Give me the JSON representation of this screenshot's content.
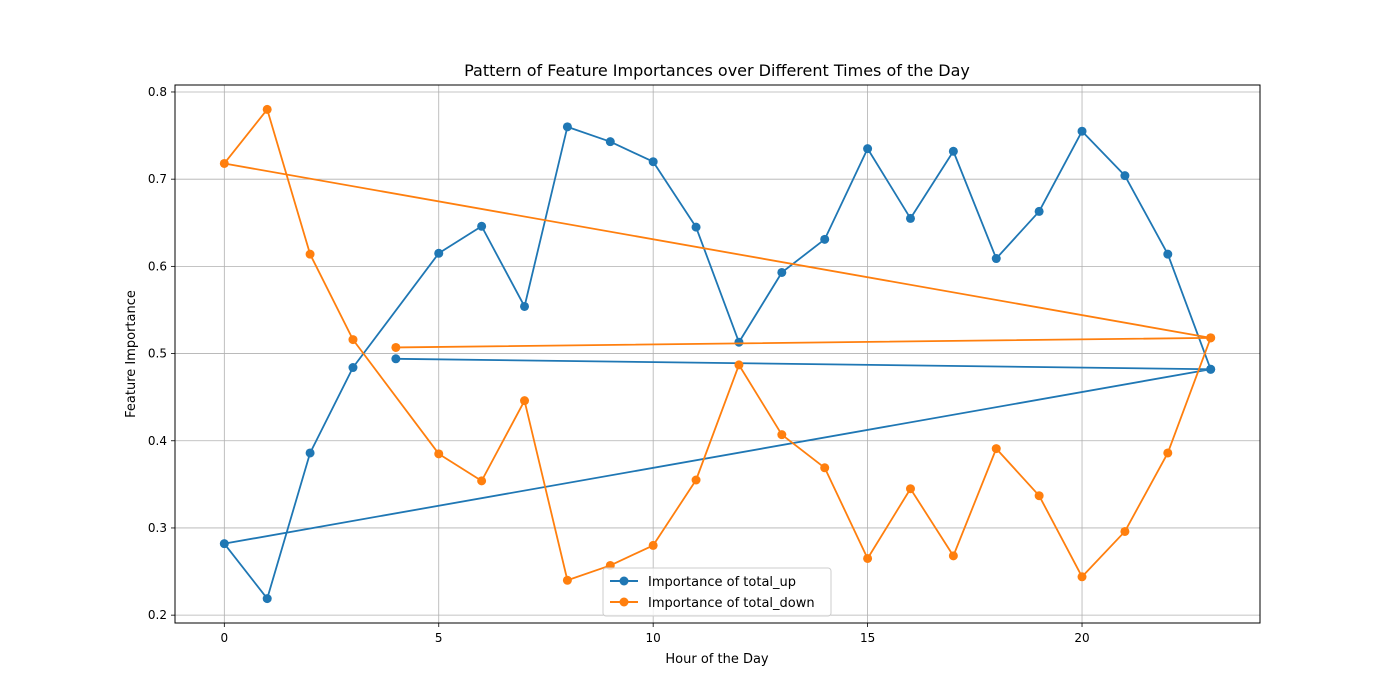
{
  "chart_data": {
    "type": "line",
    "title": "Pattern of Feature Importances over Different Times of the Day",
    "xlabel": "Hour of the Day",
    "ylabel": "Feature Importance",
    "xlim": [
      -1.15,
      24.15
    ],
    "ylim": [
      0.191,
      0.808
    ],
    "xticks": [
      0,
      5,
      10,
      15,
      20
    ],
    "yticks": [
      0.2,
      0.3,
      0.4,
      0.5,
      0.6,
      0.7,
      0.8
    ],
    "grid": true,
    "legend_position": "bottom-center",
    "series": [
      {
        "name": "Importance of total_up",
        "color": "#1f77b4",
        "points": [
          [
            4,
            0.494
          ],
          [
            23,
            0.482
          ],
          [
            0,
            0.282
          ],
          [
            1,
            0.219
          ],
          [
            2,
            0.386
          ],
          [
            3,
            0.484
          ],
          [
            5,
            0.615
          ],
          [
            6,
            0.646
          ],
          [
            7,
            0.554
          ],
          [
            8,
            0.76
          ],
          [
            9,
            0.743
          ],
          [
            10,
            0.72
          ],
          [
            11,
            0.645
          ],
          [
            12,
            0.513
          ],
          [
            13,
            0.593
          ],
          [
            14,
            0.631
          ],
          [
            15,
            0.735
          ],
          [
            16,
            0.655
          ],
          [
            17,
            0.732
          ],
          [
            18,
            0.609
          ],
          [
            19,
            0.663
          ],
          [
            20,
            0.755
          ],
          [
            21,
            0.704
          ],
          [
            22,
            0.614
          ],
          [
            23,
            0.482
          ]
        ]
      },
      {
        "name": "Importance of total_down",
        "color": "#ff7f0e",
        "points": [
          [
            4,
            0.507
          ],
          [
            23,
            0.518
          ],
          [
            0,
            0.718
          ],
          [
            1,
            0.78
          ],
          [
            2,
            0.614
          ],
          [
            3,
            0.516
          ],
          [
            5,
            0.385
          ],
          [
            6,
            0.354
          ],
          [
            7,
            0.446
          ],
          [
            8,
            0.24
          ],
          [
            9,
            0.257
          ],
          [
            10,
            0.28
          ],
          [
            11,
            0.355
          ],
          [
            12,
            0.487
          ],
          [
            13,
            0.407
          ],
          [
            14,
            0.369
          ],
          [
            15,
            0.265
          ],
          [
            16,
            0.345
          ],
          [
            17,
            0.268
          ],
          [
            18,
            0.391
          ],
          [
            19,
            0.337
          ],
          [
            20,
            0.244
          ],
          [
            21,
            0.296
          ],
          [
            22,
            0.386
          ],
          [
            23,
            0.518
          ]
        ]
      }
    ]
  }
}
